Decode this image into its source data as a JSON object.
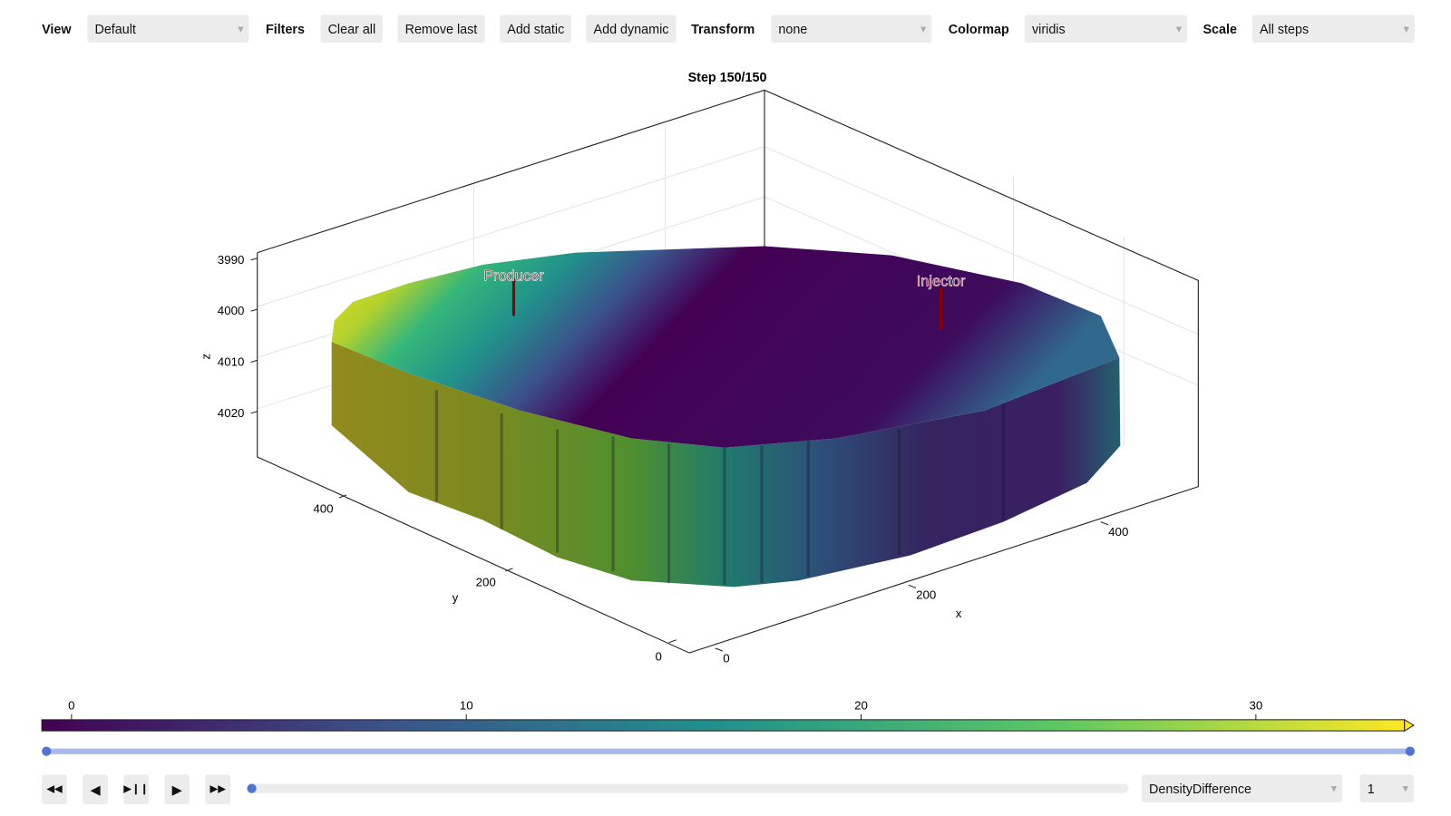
{
  "toolbar": {
    "view_label": "View",
    "view_value": "Default",
    "filters_label": "Filters",
    "buttons": [
      "Clear all",
      "Remove last",
      "Add static",
      "Add dynamic"
    ],
    "transform_label": "Transform",
    "transform_value": "none",
    "colormap_label": "Colormap",
    "colormap_value": "viridis",
    "scale_label": "Scale",
    "scale_value": "All steps"
  },
  "plot": {
    "title": "Step 150/150",
    "z_label": "z",
    "z_ticks": [
      "3990",
      "4000",
      "4010",
      "4020"
    ],
    "y_label": "y",
    "y_ticks": [
      "400",
      "200",
      "0"
    ],
    "x_label": "x",
    "x_ticks": [
      "0",
      "200",
      "400"
    ],
    "wells": [
      "Producer",
      "Injector"
    ]
  },
  "colorbar": {
    "ticks": [
      "0",
      "10",
      "20",
      "30"
    ]
  },
  "controls": {
    "variable": "DensityDifference",
    "stride": "1"
  }
}
